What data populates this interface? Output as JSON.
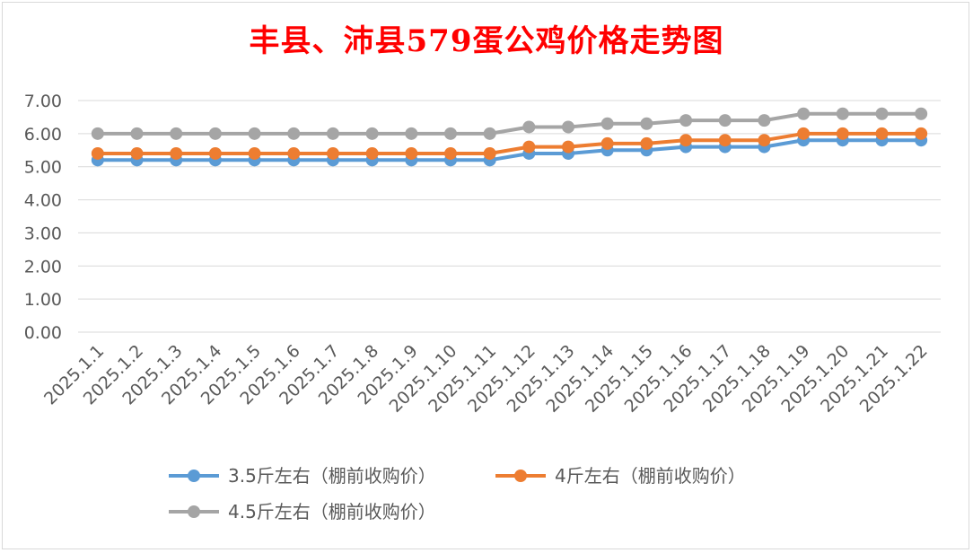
{
  "chart_data": {
    "type": "line",
    "title": "丰县、沛县579蛋公鸡价格走势图",
    "xlabel": "",
    "ylabel": "",
    "ylim": [
      0,
      7
    ],
    "y_ticks": [
      "0.00",
      "1.00",
      "2.00",
      "3.00",
      "4.00",
      "5.00",
      "6.00",
      "7.00"
    ],
    "grid": true,
    "legend_position": "bottom",
    "categories": [
      "2025.1.1",
      "2025.1.2",
      "2025.1.3",
      "2025.1.4",
      "2025.1.5",
      "2025.1.6",
      "2025.1.7",
      "2025.1.8",
      "2025.1.9",
      "2025.1.10",
      "2025.1.11",
      "2025.1.12",
      "2025.1.13",
      "2025.1.14",
      "2025.1.15",
      "2025.1.16",
      "2025.1.17",
      "2025.1.18",
      "2025.1.19",
      "2025.1.20",
      "2025.1.21",
      "2025.1.22"
    ],
    "series": [
      {
        "name": "3.5斤左右（棚前收购价）",
        "color": "#5b9bd5",
        "values": [
          5.2,
          5.2,
          5.2,
          5.2,
          5.2,
          5.2,
          5.2,
          5.2,
          5.2,
          5.2,
          5.2,
          5.4,
          5.4,
          5.5,
          5.5,
          5.6,
          5.6,
          5.6,
          5.8,
          5.8,
          5.8,
          5.8
        ]
      },
      {
        "name": "4斤左右（棚前收购价）",
        "color": "#ed7d31",
        "values": [
          5.4,
          5.4,
          5.4,
          5.4,
          5.4,
          5.4,
          5.4,
          5.4,
          5.4,
          5.4,
          5.4,
          5.6,
          5.6,
          5.7,
          5.7,
          5.8,
          5.8,
          5.8,
          6.0,
          6.0,
          6.0,
          6.0
        ]
      },
      {
        "name": "4.5斤左右（棚前收购价）",
        "color": "#a5a5a5",
        "values": [
          6.0,
          6.0,
          6.0,
          6.0,
          6.0,
          6.0,
          6.0,
          6.0,
          6.0,
          6.0,
          6.0,
          6.2,
          6.2,
          6.3,
          6.3,
          6.4,
          6.4,
          6.4,
          6.6,
          6.6,
          6.6,
          6.6
        ]
      }
    ]
  }
}
